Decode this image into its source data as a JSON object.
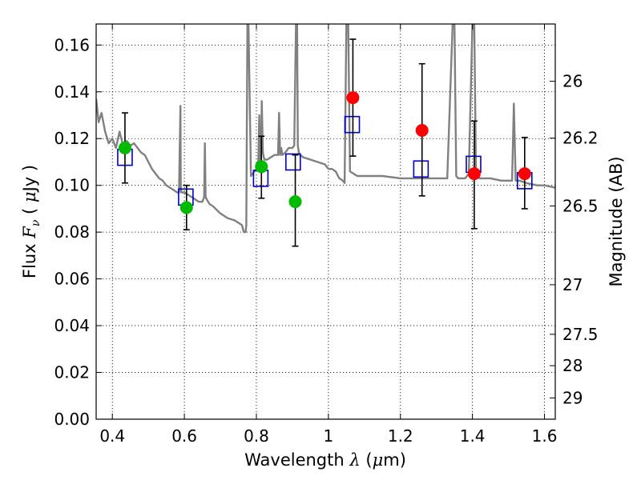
{
  "chart_data": {
    "type": "scatter",
    "xlabel": "Wavelength",
    "xlabel_symbol": "λ",
    "xlabel_unit_open": "(",
    "xlabel_unit_mu": "μ",
    "xlabel_unit_rest": "m)",
    "ylabel": "Flux",
    "ylabel_symbol": "F",
    "ylabel_symbol_sub": "ν",
    "ylabel_unit_open": "(",
    "ylabel_unit_mu": "μ",
    "ylabel_unit_rest": "Jy )",
    "y2label": "Magnitude (AB)",
    "xlim": [
      0.355,
      1.63
    ],
    "ylim": [
      0.0,
      0.169
    ],
    "xticks": [
      0.4,
      0.6,
      0.8,
      1.0,
      1.2,
      1.4,
      1.6
    ],
    "xtick_labels": [
      "0.4",
      "0.6",
      "0.8",
      "1",
      "1.2",
      "1.4",
      "1.6"
    ],
    "yticks": [
      0.0,
      0.02,
      0.04,
      0.06,
      0.08,
      0.1,
      0.12,
      0.14,
      0.16
    ],
    "ytick_labels": [
      "0.00",
      "0.02",
      "0.04",
      "0.06",
      "0.08",
      "0.10",
      "0.12",
      "0.14",
      "0.16"
    ],
    "y2ticks": [
      {
        "label": "26",
        "flux": 0.1445
      },
      {
        "label": "26.2",
        "flux": 0.1202
      },
      {
        "label": "26.5",
        "flux": 0.0912
      },
      {
        "label": "27",
        "flux": 0.0575
      },
      {
        "label": "27.5",
        "flux": 0.0363
      },
      {
        "label": "28",
        "flux": 0.0229
      },
      {
        "label": "29",
        "flux": 0.0091
      }
    ],
    "grid": true,
    "colors": {
      "model": "#808080",
      "bandpass_box": "#0000cc",
      "obs_blue_bands": "#00bb00",
      "obs_red_bands": "#ff0000",
      "errorbar": "#000000"
    },
    "model_spectrum": {
      "name": "",
      "x": [
        0.355,
        0.362,
        0.37,
        0.38,
        0.39,
        0.4,
        0.41,
        0.42,
        0.43,
        0.44,
        0.45,
        0.46,
        0.47,
        0.48,
        0.49,
        0.5,
        0.51,
        0.52,
        0.53,
        0.54,
        0.55,
        0.56,
        0.57,
        0.58,
        0.585,
        0.589,
        0.59,
        0.591,
        0.595,
        0.6,
        0.62,
        0.64,
        0.65,
        0.655,
        0.657,
        0.659,
        0.662,
        0.67,
        0.68,
        0.7,
        0.72,
        0.74,
        0.76,
        0.765,
        0.77,
        0.772,
        0.775,
        0.778,
        0.785,
        0.79,
        0.795,
        0.8,
        0.805,
        0.808,
        0.81,
        0.813,
        0.815,
        0.818,
        0.822,
        0.83,
        0.84,
        0.85,
        0.86,
        0.863,
        0.866,
        0.869,
        0.872,
        0.88,
        0.89,
        0.9,
        0.905,
        0.91,
        0.913,
        0.915,
        0.918,
        0.922,
        0.93,
        0.95,
        0.97,
        0.99,
        1.0,
        1.01,
        1.02,
        1.03,
        1.04,
        1.045,
        1.05,
        1.055,
        1.06,
        1.08,
        1.1,
        1.12,
        1.15,
        1.2,
        1.25,
        1.3,
        1.33,
        1.345,
        1.35,
        1.355,
        1.36,
        1.38,
        1.39,
        1.4,
        1.405,
        1.41,
        1.42,
        1.45,
        1.48,
        1.5,
        1.51,
        1.515,
        1.52,
        1.53,
        1.55,
        1.58,
        1.6,
        1.63
      ],
      "y": [
        0.137,
        0.127,
        0.131,
        0.123,
        0.118,
        0.12,
        0.116,
        0.123,
        0.117,
        0.119,
        0.117,
        0.118,
        0.116,
        0.114,
        0.113,
        0.11,
        0.107,
        0.105,
        0.103,
        0.102,
        0.1,
        0.099,
        0.098,
        0.097,
        0.097,
        0.134,
        0.1,
        0.097,
        0.097,
        0.097,
        0.095,
        0.093,
        0.093,
        0.095,
        0.118,
        0.095,
        0.094,
        0.092,
        0.091,
        0.088,
        0.086,
        0.085,
        0.083,
        0.08,
        0.08,
        0.083,
        0.169,
        0.169,
        0.104,
        0.105,
        0.106,
        0.107,
        0.108,
        0.13,
        0.109,
        0.114,
        0.136,
        0.114,
        0.111,
        0.111,
        0.112,
        0.113,
        0.113,
        0.131,
        0.113,
        0.116,
        0.113,
        0.114,
        0.116,
        0.116,
        0.117,
        0.169,
        0.169,
        0.117,
        0.114,
        0.113,
        0.112,
        0.111,
        0.11,
        0.109,
        0.107,
        0.107,
        0.106,
        0.103,
        0.102,
        0.101,
        0.169,
        0.169,
        0.106,
        0.104,
        0.104,
        0.104,
        0.104,
        0.103,
        0.103,
        0.103,
        0.103,
        0.169,
        0.169,
        0.104,
        0.103,
        0.103,
        0.105,
        0.169,
        0.169,
        0.104,
        0.103,
        0.103,
        0.102,
        0.102,
        0.102,
        0.135,
        0.102,
        0.102,
        0.101,
        0.1,
        0.1,
        0.099
      ]
    },
    "bandpass_boxes": {
      "x": [
        0.435,
        0.604,
        0.812,
        0.902,
        1.066,
        1.257,
        1.403,
        1.545
      ],
      "y": [
        0.112,
        0.095,
        0.103,
        0.11,
        0.126,
        0.107,
        0.109,
        0.102
      ]
    },
    "observations": [
      {
        "x": 0.435,
        "y": 0.116,
        "yerr_low": 0.101,
        "yerr_high": 0.131,
        "color": "#00bb00"
      },
      {
        "x": 0.606,
        "y": 0.0905,
        "yerr_low": 0.081,
        "yerr_high": 0.1,
        "color": "#00bb00"
      },
      {
        "x": 0.814,
        "y": 0.108,
        "yerr_low": 0.0945,
        "yerr_high": 0.121,
        "color": "#00bb00"
      },
      {
        "x": 0.908,
        "y": 0.093,
        "yerr_low": 0.074,
        "yerr_high": 0.113,
        "color": "#00bb00"
      },
      {
        "x": 1.068,
        "y": 0.1375,
        "yerr_low": 0.1125,
        "yerr_high": 0.1625,
        "color": "#ff0000"
      },
      {
        "x": 1.26,
        "y": 0.1235,
        "yerr_low": 0.0955,
        "yerr_high": 0.152,
        "color": "#ff0000"
      },
      {
        "x": 1.405,
        "y": 0.105,
        "yerr_low": 0.0815,
        "yerr_high": 0.1275,
        "color": "#ff0000"
      },
      {
        "x": 1.545,
        "y": 0.105,
        "yerr_low": 0.09,
        "yerr_high": 0.1205,
        "color": "#ff0000"
      }
    ]
  }
}
